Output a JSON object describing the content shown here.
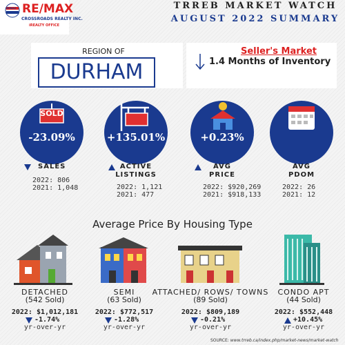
{
  "logo": {
    "brand": "RE/MAX",
    "balloon": "RE/MAX",
    "office": "CROSSROADS REALTY INC.",
    "tagline": "iREALTY OFFICE"
  },
  "header": {
    "title": "TRREB MARKET WATCH",
    "subtitle": "AUGUST 2022 SUMMARY"
  },
  "region": {
    "label": "REGION OF",
    "name": "DURHAM"
  },
  "market": {
    "status": "Seller's Market",
    "inventory": "1.4 Months of Inventory"
  },
  "stats": [
    {
      "change": "-23.09%",
      "label": [
        "SALES"
      ],
      "trend": "down",
      "sign": "SOLD",
      "rows": [
        [
          "2022:",
          "806"
        ],
        [
          "2021:",
          "1,048"
        ]
      ]
    },
    {
      "change": "+135.01%",
      "label": [
        "ACTIVE",
        "LISTINGS"
      ],
      "trend": "up",
      "rows": [
        [
          "2022:",
          "1,121"
        ],
        [
          "2021:",
          "477"
        ]
      ]
    },
    {
      "change": "+0.23%",
      "label": [
        "AVG",
        "PRICE"
      ],
      "trend": "up",
      "rows": [
        [
          "2022:",
          "$920,269"
        ],
        [
          "2021:",
          "$918,133"
        ]
      ]
    },
    {
      "label": [
        "AVG",
        "PDOM"
      ],
      "rows": [
        [
          "2022:",
          "26"
        ],
        [
          "2021:",
          "12"
        ]
      ]
    }
  ],
  "section": {
    "title": "Average Price By Housing Type"
  },
  "housing": [
    {
      "type": "DETACHED",
      "sold": "(542 Sold)",
      "year": "2022:",
      "price": "$1,012,181",
      "change": "-1.74%",
      "trend": "down",
      "note": "yr-over-yr"
    },
    {
      "type": "SEMI",
      "sold": "(63 Sold)",
      "year": "2022:",
      "price": "$772,517",
      "change": "-1.28%",
      "trend": "down",
      "note": "yr-over-yr"
    },
    {
      "type": "ATTACHED/ ROWS/ TOWNS",
      "sold": "(89 Sold)",
      "year": "2022:",
      "price": "$809,189",
      "change": "-0.21%",
      "trend": "down",
      "note": "yr-over-yr"
    },
    {
      "type": "CONDO APT",
      "sold": "(44 Sold)",
      "year": "2022:",
      "price": "$552,448",
      "change": "+10.45%",
      "trend": "up",
      "note": "yr-over-yr"
    }
  ],
  "source": {
    "label": "SOURCE:",
    "url": "www.trreb.ca/index.php/market-news/market-watch"
  }
}
